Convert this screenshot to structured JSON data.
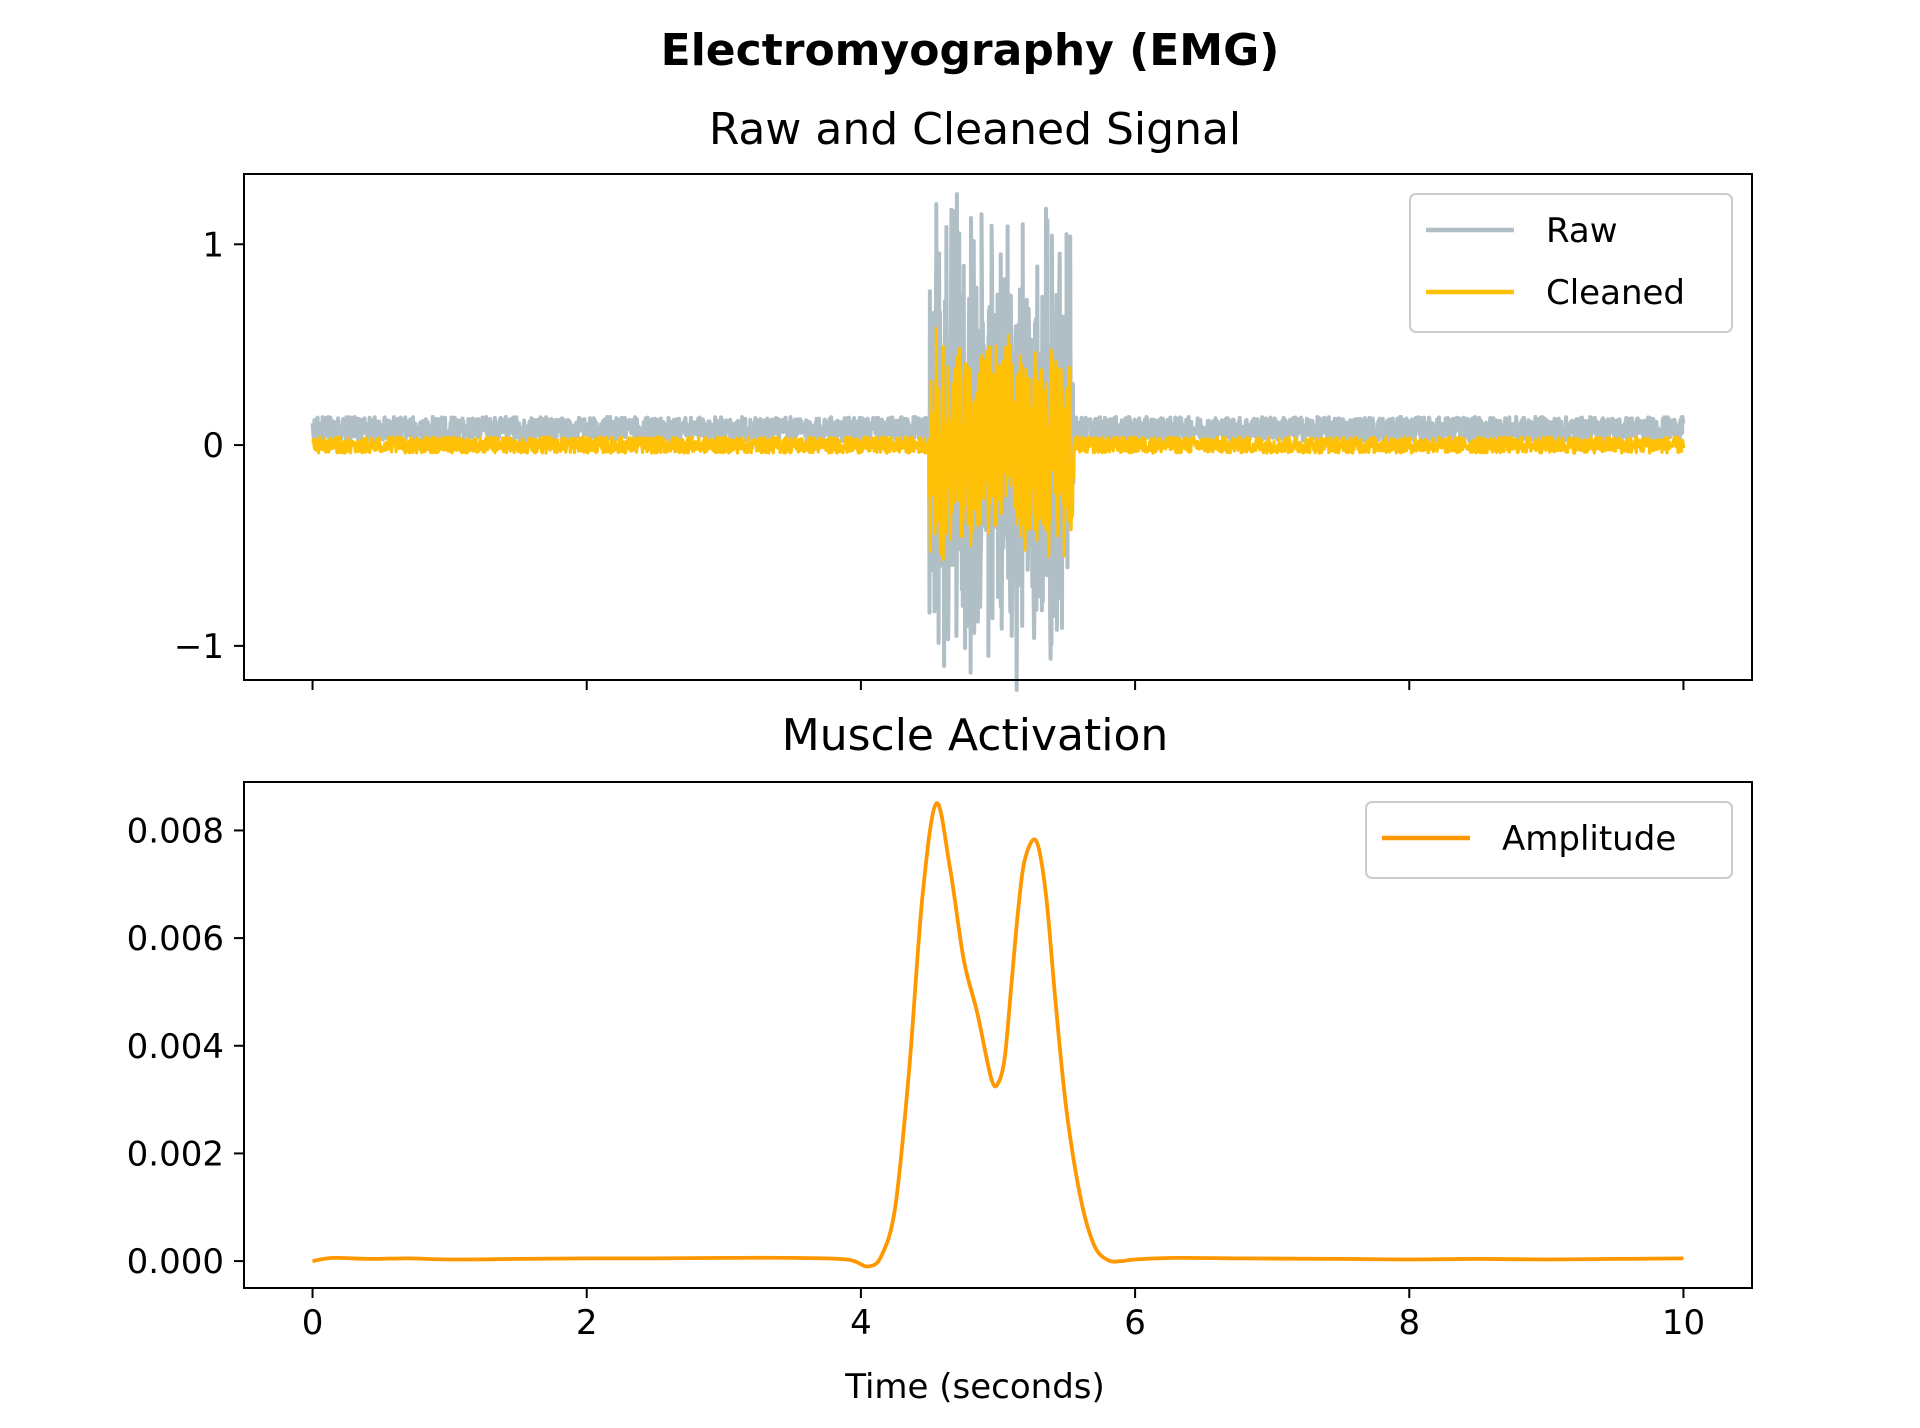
{
  "suptitle": "Electromyography (EMG)",
  "colors": {
    "raw": "#b0bec5",
    "cleaned": "#ffc107",
    "amplitude": "#ff9800",
    "axes": "#000000",
    "legend_border": "#cccccc"
  },
  "chart_data": [
    {
      "type": "line",
      "title": "Raw and Cleaned Signal",
      "xlabel": "",
      "ylabel": "",
      "xlim": [
        -0.5,
        10.5
      ],
      "ylim": [
        -1.17,
        1.35
      ],
      "xticks": [
        0,
        2,
        4,
        6,
        8,
        10
      ],
      "xtick_labels_visible": false,
      "yticks": [
        -1,
        0,
        1
      ],
      "ytick_labels": [
        "−1",
        "0",
        "1"
      ],
      "grid": false,
      "legend_position": "upper right",
      "sampling": {
        "start": 0,
        "end": 10,
        "burst_start": 4.5,
        "burst_end": 5.55
      },
      "series": [
        {
          "name": "Raw",
          "color_key": "raw",
          "baseline_offset": 0.08,
          "baseline_noise_amplitude": 0.06,
          "burst_peaks": [
            [
              4.55,
              1.2
            ],
            [
              4.62,
              -0.78
            ],
            [
              4.7,
              1.25
            ],
            [
              4.78,
              -0.9
            ],
            [
              4.88,
              1.15
            ],
            [
              4.93,
              -1.05
            ],
            [
              5.02,
              0.95
            ],
            [
              5.1,
              -0.95
            ],
            [
              5.18,
              1.1
            ],
            [
              5.28,
              -0.82
            ],
            [
              5.36,
              1.12
            ],
            [
              5.43,
              -0.92
            ],
            [
              5.5,
              1.05
            ]
          ]
        },
        {
          "name": "Cleaned",
          "color_key": "cleaned",
          "baseline_offset": 0.0,
          "baseline_noise_amplitude": 0.04,
          "burst_peaks": [
            [
              4.55,
              0.58
            ],
            [
              4.6,
              -0.57
            ],
            [
              4.72,
              0.48
            ],
            [
              4.8,
              -0.5
            ],
            [
              4.9,
              0.42
            ],
            [
              4.98,
              -0.4
            ],
            [
              5.08,
              0.45
            ],
            [
              5.17,
              -0.38
            ],
            [
              5.27,
              0.46
            ],
            [
              5.35,
              -0.42
            ],
            [
              5.45,
              0.38
            ],
            [
              5.52,
              -0.35
            ]
          ]
        }
      ]
    },
    {
      "type": "line",
      "title": "Muscle Activation",
      "xlabel": "Time (seconds)",
      "ylabel": "",
      "xlim": [
        -0.5,
        10.5
      ],
      "ylim": [
        -0.0005,
        0.0089
      ],
      "xticks": [
        0,
        2,
        4,
        6,
        8,
        10
      ],
      "xtick_labels": [
        "0",
        "2",
        "4",
        "6",
        "8",
        "10"
      ],
      "yticks": [
        0,
        0.002,
        0.004,
        0.006,
        0.008
      ],
      "ytick_labels": [
        "0.000",
        "0.002",
        "0.004",
        "0.006",
        "0.008"
      ],
      "grid": false,
      "legend_position": "upper right",
      "series": [
        {
          "name": "Amplitude",
          "color_key": "amplitude",
          "x": [
            0,
            0.15,
            0.4,
            0.7,
            1.0,
            1.5,
            2.0,
            2.5,
            3.0,
            3.5,
            3.9,
            4.05,
            4.15,
            4.25,
            4.35,
            4.45,
            4.55,
            4.65,
            4.75,
            4.85,
            4.95,
            5.0,
            5.05,
            5.1,
            5.15,
            5.2,
            5.28,
            5.35,
            5.42,
            5.5,
            5.6,
            5.7,
            5.8,
            5.9,
            6.0,
            6.3,
            6.8,
            7.5,
            8.0,
            8.5,
            9.0,
            9.5,
            10.0
          ],
          "y": [
            0.0,
            6e-05,
            4e-05,
            5e-05,
            3e-05,
            4e-05,
            5e-05,
            5e-05,
            6e-05,
            6e-05,
            3e-05,
            -0.0001,
            0.0001,
            0.001,
            0.0035,
            0.0068,
            0.0085,
            0.0073,
            0.0056,
            0.0046,
            0.0034,
            0.0033,
            0.0038,
            0.0052,
            0.0066,
            0.0075,
            0.0078,
            0.0068,
            0.0048,
            0.0028,
            0.0012,
            0.0003,
            2e-05,
            0.0,
            3e-05,
            6e-05,
            5e-05,
            4e-05,
            3e-05,
            4e-05,
            3e-05,
            4e-05,
            5e-05
          ]
        }
      ]
    }
  ]
}
